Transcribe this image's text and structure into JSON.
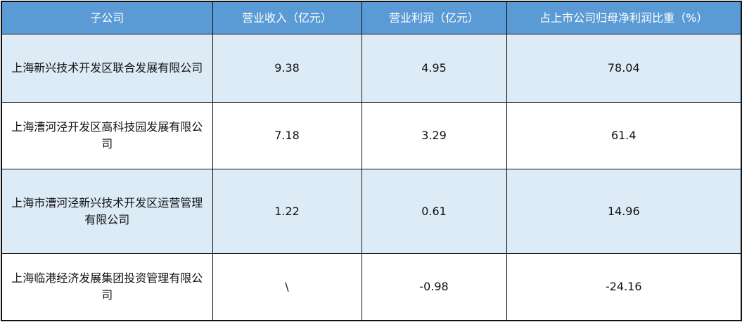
{
  "table": {
    "headers": [
      "子公司",
      "营业收入（亿元）",
      "营业利润（亿元）",
      "占上市公司归母净利润比重（%）"
    ],
    "rows": [
      {
        "company": "上海新兴技术开发区联合发展有限公司",
        "revenue": "9.38",
        "profit": "4.95",
        "share": "78.04"
      },
      {
        "company": "上海漕河泾开发区高科技园发展有限公司",
        "revenue": "7.18",
        "profit": "3.29",
        "share": "61.4"
      },
      {
        "company": "上海市漕河泾新兴技术开发区运营管理有限公司",
        "revenue": "1.22",
        "profit": "0.61",
        "share": "14.96"
      },
      {
        "company": "上海临港经济发展集团投资管理有限公司",
        "revenue": "\\",
        "profit": "-0.98",
        "share": "-24.16"
      }
    ],
    "colors": {
      "header_bg": "#5b9bd5",
      "alt_row_bg": "#ddebf7"
    }
  }
}
